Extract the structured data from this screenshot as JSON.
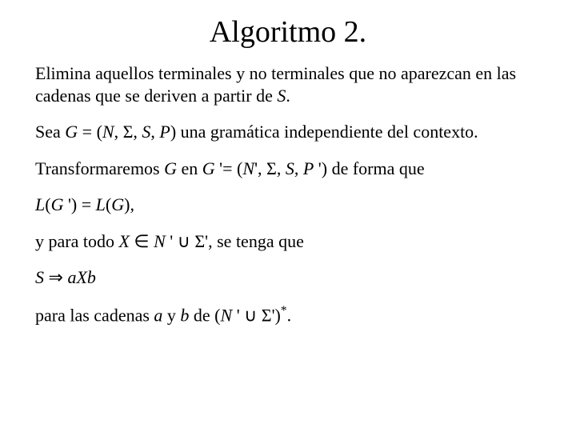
{
  "title": "Algoritmo 2.",
  "p1a": "Elimina aquellos terminales y no terminales que no aparezcan en las cadenas que se deriven a partir de ",
  "p1b": "S",
  "p1c": ".",
  "p2a": "Sea ",
  "p2b": "G",
  "p2c": " = (",
  "p2d": "N",
  "p2e": ", Σ, ",
  "p2f": "S",
  "p2g": ", ",
  "p2h": "P",
  "p2i": ") una gramática independiente del contexto.",
  "p3a": "Transformaremos ",
  "p3b": "G",
  "p3c": " en ",
  "p3d": "G",
  "p3e": " '= (",
  "p3f": "N",
  "p3g": "', Σ, ",
  "p3h": "S",
  "p3i": ", ",
  "p3j": "P",
  "p3k": " ') de forma que",
  "p4a": "L",
  "p4b": "(",
  "p4c": "G",
  "p4d": " ') = ",
  "p4e": "L",
  "p4f": "(",
  "p4g": "G",
  "p4h": "),",
  "p5a": "y para todo ",
  "p5b": "X",
  "p5c": " ∈ ",
  "p5d": "N",
  "p5e": " ' ∪ Σ', se tenga que",
  "p6a": "S",
  "p6b": " ⇒ ",
  "p6c": "aXb",
  "p7a": "para las cadenas ",
  "p7b": "a",
  "p7c": " y ",
  "p7d": "b",
  "p7e": " de (",
  "p7f": "N",
  "p7g": " ' ∪ Σ')",
  "p7h": "*",
  "p7i": ".",
  "style": {
    "background_color": "#ffffff",
    "text_color": "#000000",
    "title_fontsize": 38,
    "body_fontsize": 22,
    "font_family": "Times New Roman"
  }
}
